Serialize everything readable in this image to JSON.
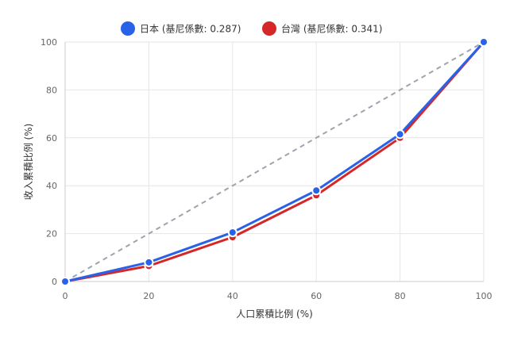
{
  "chart_data": {
    "type": "line",
    "x": [
      0,
      20,
      40,
      60,
      80,
      100
    ],
    "xlabel": "人口累積比例 (%)",
    "ylabel": "收入累積比例 (%)",
    "xlim": [
      0,
      100
    ],
    "ylim": [
      0,
      100
    ],
    "xticks": [
      "0",
      "20",
      "40",
      "60",
      "80",
      "100"
    ],
    "yticks": [
      "0",
      "20",
      "40",
      "60",
      "80",
      "100"
    ],
    "grid": true,
    "legend_position": "top-center",
    "series": [
      {
        "name": "日本 (基尼係數: 0.287)",
        "color": "#2962e8",
        "values": [
          0,
          8,
          20.5,
          38,
          61.5,
          100
        ]
      },
      {
        "name": "台灣 (基尼係數: 0.341)",
        "color": "#d62728",
        "values": [
          0,
          6.5,
          18.5,
          36,
          60,
          100
        ]
      }
    ],
    "reference_line": {
      "color": "#9ea3ad",
      "values": [
        0,
        20,
        40,
        60,
        80,
        100
      ]
    }
  }
}
